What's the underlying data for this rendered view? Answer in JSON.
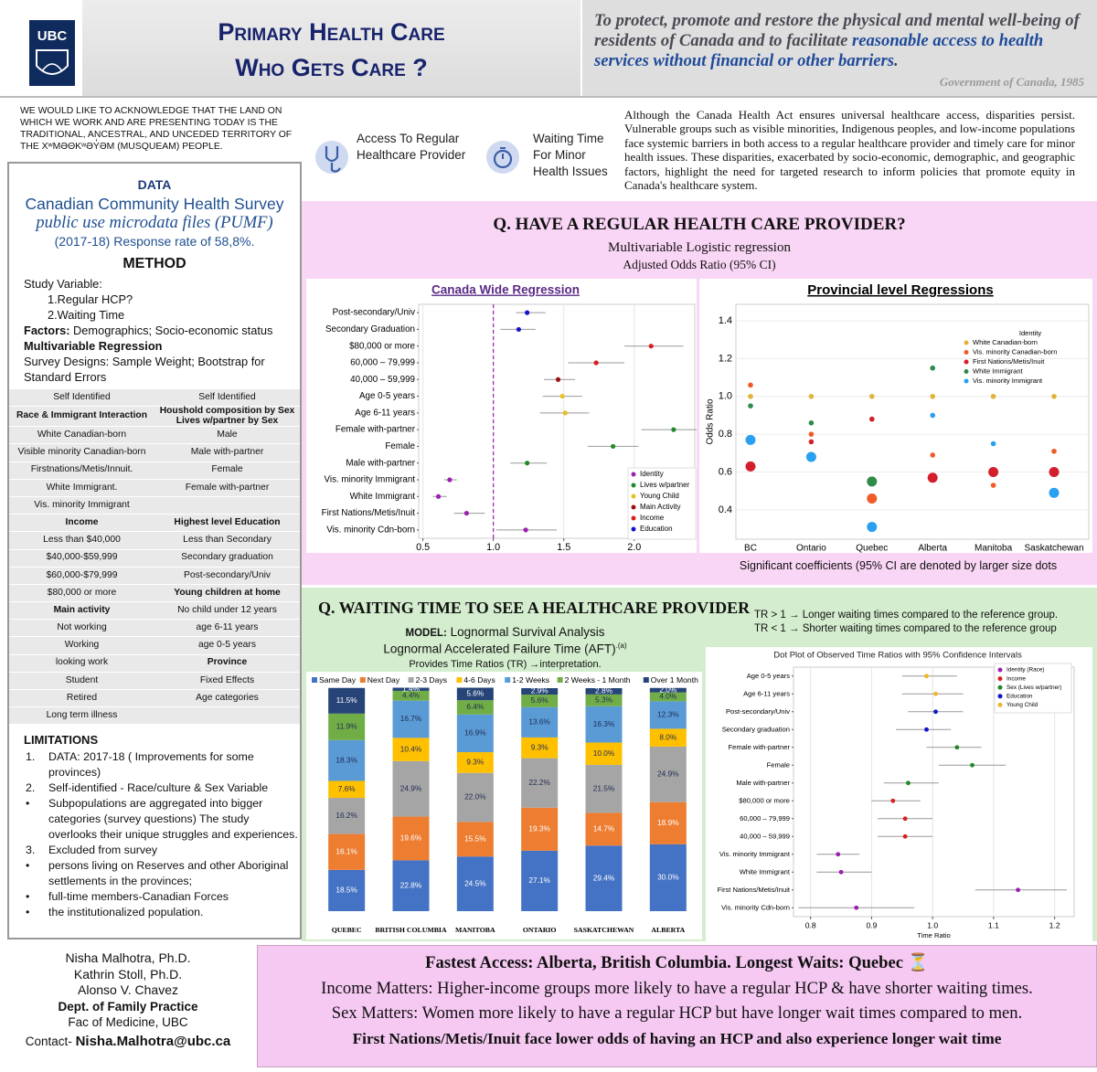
{
  "header": {
    "logo": "UBC",
    "title_line1": "Primary Health Care",
    "title_line2": "Who Gets Care ?",
    "quote_text": "To protect, promote and restore the physical and mental well-being of residents of Canada and to facilitate ",
    "quote_link": "reasonable access to health services without financial or other barriers",
    "quote_end": ".",
    "quote_source": "Government of Canada, 1985"
  },
  "acknowledgement": "WE WOULD LIKE TO ACKNOWLEDGE THAT THE LAND ON WHICH WE WORK AND ARE PRESENTING TODAY IS THE TRADITIONAL, ANCESTRAL, AND UNCEDED TERRITORY OF THE XʷMƏΘKʷƏY̓ƏM (MUSQUEAM) PEOPLE.",
  "data_box": {
    "heading": "DATA",
    "survey": "Canadian Community Health Survey",
    "pumf": "public use microdata files (PUMF)",
    "response": "(2017-18) Response rate of 58,8%."
  },
  "method": {
    "heading": "METHOD",
    "study_variable": "Study Variable:",
    "variables": [
      "1.Regular HCP?",
      "2.Waiting Time"
    ],
    "factors_label": "Factors:",
    "factors": " Demographics; Socio-economic status",
    "regression": "Multivariable Regression",
    "designs": "Survey Designs: Sample Weight; Bootstrap for Standard Errors"
  },
  "variables_table": {
    "rows": [
      [
        "Self Identified",
        "Self Identified"
      ],
      [
        "Race & Immigrant Interaction",
        "Houshold composition by Sex Lives w/partner by Sex"
      ],
      [
        "White Canadian-born",
        "Male"
      ],
      [
        "Visible minority Canadian-born",
        "Male with-partner"
      ],
      [
        "Firstnations/Metis/Innuit.",
        "Female"
      ],
      [
        "White Immigrant.",
        "Female with-partner"
      ],
      [
        "Vis. minority Immigrant",
        null
      ],
      [
        "Income",
        "Highest level Education"
      ],
      [
        "Less than $40,000",
        "Less than Secondary"
      ],
      [
        "$40,000-$59,999",
        "Secondary graduation"
      ],
      [
        "$60,000-$79,999",
        "Post-secondary/Univ"
      ],
      [
        "$80,000 or more",
        "Young children at home"
      ],
      [
        "Main activity",
        "No child under 12 years"
      ],
      [
        "Not working",
        "age 6-11 years"
      ],
      [
        "Working",
        "age 0-5 years"
      ],
      [
        "looking work",
        "Province"
      ],
      [
        "Student",
        "Fixed Effects"
      ],
      [
        "Retired",
        "Age  categories"
      ],
      [
        "Long term illness",
        null
      ]
    ]
  },
  "limitations": {
    "heading": "LIMITATIONS",
    "items": [
      {
        "marker": "1.",
        "text": "DATA:  2017-18 ( Improvements for some provinces)"
      },
      {
        "marker": "2.",
        "text": "Self-identified - Race/culture & Sex Variable"
      },
      {
        "marker": "•",
        "text": "Subpopulations are aggregated into bigger categories (survey questions) The study overlooks their unique struggles and experiences."
      },
      {
        "marker": "3.",
        "text": "Excluded from survey"
      },
      {
        "marker": "•",
        "text": "persons living on Reserves and other Aboriginal settlements in the provinces;"
      },
      {
        "marker": "•",
        "text": "full-time members-Canadian Forces"
      },
      {
        "marker": "•",
        "text": "the institutionalized population."
      }
    ]
  },
  "outcomes": [
    "Access To Regular Healthcare Provider",
    "Waiting Time For Minor Health Issues"
  ],
  "intro": "Although the Canada Health Act ensures universal healthcare access, disparities persist. Vulnerable groups such as visible minorities, Indigenous peoples, and low-income populations face systemic barriers in both access to a regular healthcare provider and timely care for minor health issues. These disparities, exacerbated by socio-economic, demographic, and geographic factors, highlight the need for targeted research to inform policies that promote equity in Canada's healthcare system.",
  "q1": {
    "title": "Q. HAVE A REGULAR HEALTH CARE PROVIDER?",
    "model": "Multivariable Logistic regression",
    "measure": "Adjusted Odds Ratio (95% CI)",
    "canada": {
      "type": "forest",
      "title": "Canada Wide Regression",
      "categories": [
        "Post-secondary/Univ",
        "Secondary Graduation",
        "$80,000 or more",
        "60,000 – 79,999",
        "40,000 – 59,999",
        "Age 0-5 years",
        "Age 6-11 years",
        "Female with-partner",
        "Female",
        "Male with-partner",
        "Vis. minority Immigrant",
        "White Immigrant",
        "First Nations/Metis/Inuit",
        "Vis. minority Cdn-born"
      ],
      "values": [
        1.24,
        1.18,
        2.12,
        1.73,
        1.46,
        1.49,
        1.51,
        2.28,
        1.85,
        1.24,
        0.69,
        0.61,
        0.81,
        1.23
      ],
      "ci_low": [
        1.16,
        1.05,
        1.93,
        1.53,
        1.36,
        1.35,
        1.33,
        2.05,
        1.67,
        1.12,
        0.65,
        0.57,
        0.72,
        1.02
      ],
      "ci_high": [
        1.37,
        1.3,
        2.35,
        1.93,
        1.58,
        1.63,
        1.68,
        2.48,
        2.03,
        1.38,
        0.74,
        0.67,
        0.94,
        1.45
      ],
      "colors": [
        "#1414c8",
        "#1414c8",
        "#d91e1e",
        "#d91e1e",
        "#9b1010",
        "#e8c020",
        "#e8c020",
        "#1f8a2a",
        "#1f8a2a",
        "#1f8a2a",
        "#9b1fb0",
        "#9b1fb0",
        "#9b1fb0",
        "#9b1fb0"
      ],
      "reference": 1,
      "xlim": [
        0.47,
        2.43
      ],
      "xticks": [
        0.5,
        {
          "value": 1,
          "label": "1.0"
        },
        1.5,
        {
          "value": 2,
          "label": "2.0"
        }
      ],
      "legend": [
        {
          "name": "Identity",
          "color": "#9b1fb0"
        },
        {
          "name": "Lives w/partner",
          "color": "#1f8a2a"
        },
        {
          "name": "Young Child",
          "color": "#e8c020"
        },
        {
          "name": "Main Activity",
          "color": "#9b1010"
        },
        {
          "name": "Income",
          "color": "#d91e1e"
        },
        {
          "name": "Education",
          "color": "#1414c8"
        }
      ]
    },
    "provincial": {
      "type": "dot",
      "title": "Provincial level Regressions",
      "ylabel": "Odds Ratio",
      "categories": [
        "BC",
        "Ontario",
        "Quebec",
        "Alberta",
        "Manitoba",
        "Saskatchewan"
      ],
      "legend_title": "Identity",
      "series": [
        {
          "name": "White Canadian-born",
          "color": "#e0b43a",
          "values": [
            1.0,
            1.0,
            1.0,
            1.0,
            1.0,
            1.0
          ],
          "significant": [
            false,
            false,
            false,
            false,
            false,
            false
          ]
        },
        {
          "name": "Vis. minority Canadian-born",
          "color": "#f05a28",
          "values": [
            1.06,
            0.8,
            0.46,
            0.69,
            0.53,
            0.71
          ],
          "significant": [
            false,
            false,
            true,
            false,
            false,
            false
          ]
        },
        {
          "name": "First Nations/Metis/Inuit",
          "color": "#d21f2b",
          "values": [
            0.63,
            0.76,
            0.88,
            0.57,
            0.6,
            0.6
          ],
          "significant": [
            true,
            false,
            false,
            true,
            true,
            true
          ]
        },
        {
          "name": "White Immigrant",
          "color": "#2e8b4a",
          "values": [
            0.95,
            0.86,
            0.55,
            1.15,
            null,
            null
          ],
          "significant": [
            false,
            false,
            true,
            false,
            false,
            false
          ]
        },
        {
          "name": "Vis. minority Immigrant",
          "color": "#2aa0f0",
          "values": [
            0.77,
            0.68,
            0.31,
            0.9,
            0.75,
            0.49
          ],
          "significant": [
            true,
            true,
            true,
            false,
            false,
            true
          ]
        }
      ],
      "ylim": [
        0.245,
        1.487
      ],
      "yticks": [
        0.4,
        0.6,
        0.8,
        {
          "value": 1,
          "label": "1.0"
        },
        1.2,
        1.4
      ]
    },
    "note": "Significant coefficients (95% CI are denoted by larger size dots"
  },
  "q2": {
    "title": "Q. WAITING TIME TO SEE A HEALTHCARE PROVIDER",
    "model_label": "MODEL:",
    "model": " Lognormal Survival Analysis",
    "aft": "Lognormal Accelerated Failure Time (AFT)",
    "aft_note": ".(a)",
    "provides": "Provides Time Ratios (TR) →interpretation.",
    "tr_longer": "TR > 1 → Longer waiting times compared to the reference group.",
    "tr_shorter": "TR < 1 → Shorter waiting times compared to the reference group",
    "bars": {
      "type": "bar",
      "stacked": true,
      "categories": [
        "QUEBEC",
        "BRITISH COLUMBIA",
        "MANITOBA",
        "ONTARIO",
        "SASKATCHEWAN",
        "ALBERTA"
      ],
      "series": [
        {
          "name": "Same Day",
          "color": "#4472c4",
          "values": [
            18.5,
            22.8,
            24.5,
            27.1,
            29.4,
            30.0
          ],
          "value_labels": [
            "18.5%",
            "22.8%",
            "24.5%",
            "27.1%",
            "29.4%",
            "30.0%"
          ]
        },
        {
          "name": "Next Day",
          "color": "#ed7d31",
          "values": [
            16.1,
            19.6,
            15.5,
            19.3,
            14.7,
            18.9
          ],
          "value_labels": [
            "16.1%",
            "19.6%",
            "15.5%",
            "19.3%",
            "14.7%",
            "18.9%"
          ]
        },
        {
          "name": "2-3 Days",
          "color": "#a5a5a5",
          "values": [
            16.2,
            24.9,
            22.0,
            22.2,
            21.5,
            24.9
          ],
          "value_labels": [
            "16.2%",
            "24.9%",
            "22.0%",
            "22.2%",
            "21.5%",
            "24.9%"
          ]
        },
        {
          "name": "4-6 Days",
          "color": "#ffc000",
          "values": [
            7.6,
            10.4,
            9.3,
            9.3,
            10.0,
            8.0
          ],
          "value_labels": [
            "7.6%",
            "10.4%",
            "9.3%",
            "9.3%",
            "10.0%",
            "8.0%"
          ]
        },
        {
          "name": "1-2 Weeks",
          "color": "#5b9bd5",
          "values": [
            18.3,
            16.7,
            16.9,
            13.6,
            16.3,
            12.3
          ],
          "value_labels": [
            "18.3%",
            "16.7%",
            "16.9%",
            "13.6%",
            "16.3%",
            "12.3%"
          ]
        },
        {
          "name": "2 Weeks - 1 Month",
          "color": "#70ad47",
          "values": [
            11.9,
            4.4,
            6.4,
            5.6,
            5.3,
            4.0
          ],
          "value_labels": [
            "11.9%",
            "4.4%",
            "6.4%",
            "5.6%",
            "5.3%",
            "4.0%"
          ]
        },
        {
          "name": "Over 1 Month",
          "color": "#264478",
          "values": [
            11.5,
            1.4,
            5.6,
            2.9,
            2.8,
            2.0
          ],
          "value_labels": [
            "11.5%",
            "1.4%",
            "5.6%",
            "2.9%",
            "2.8%",
            "2.0%"
          ]
        }
      ],
      "ylim": [
        0,
        100
      ]
    },
    "dots": {
      "type": "forest",
      "title": "Dot Plot of Observed Time Ratios with 95% Confidence Intervals",
      "xlabel": "Time Ratio",
      "categories": [
        "Age 0-5 years",
        "Age 6-11 years",
        "Post-secondary/Univ",
        "Secondary graduation",
        "Female with-partner",
        "Female",
        "Male with-partner",
        "$80,000 or more",
        "60,000 – 79,999",
        "40,000 – 59,999",
        "Vis. minority Immigrant",
        "White Immigrant",
        "First Nations/Metis/Inuit",
        "Vis. minority Cdn-born"
      ],
      "values": [
        0.99,
        1.005,
        1.005,
        0.99,
        1.04,
        1.065,
        0.96,
        0.935,
        0.955,
        0.955,
        0.845,
        0.85,
        1.14,
        0.875
      ],
      "ci_low": [
        0.95,
        0.95,
        0.96,
        0.94,
        0.99,
        1.01,
        0.92,
        0.9,
        0.91,
        0.91,
        0.81,
        0.81,
        1.07,
        0.78
      ],
      "ci_high": [
        1.04,
        1.05,
        1.05,
        1.03,
        1.08,
        1.12,
        1.01,
        0.98,
        1.0,
        1.0,
        0.88,
        0.9,
        1.22,
        0.97
      ],
      "colors": [
        "#f0b429",
        "#f0b429",
        "#1414c8",
        "#1414c8",
        "#1f8a2a",
        "#1f8a2a",
        "#1f8a2a",
        "#d91e1e",
        "#d91e1e",
        "#d91e1e",
        "#9b1fb0",
        "#9b1fb0",
        "#9b1fb0",
        "#9b1fb0"
      ],
      "xlim": [
        0.772,
        1.232
      ],
      "xticks": [
        0.8,
        0.9,
        {
          "value": 1,
          "label": "1.0"
        },
        1.1,
        1.2
      ],
      "legend": [
        {
          "name": "Identity (Race)",
          "color": "#9b1fb0"
        },
        {
          "name": "Income",
          "color": "#d91e1e"
        },
        {
          "name": "Sex (Lives w/partner)",
          "color": "#1f8a2a"
        },
        {
          "name": "Education",
          "color": "#1414c8"
        },
        {
          "name": "Young Child",
          "color": "#f0b429"
        }
      ]
    }
  },
  "authors": {
    "names": [
      "Nisha Malhotra, Ph.D.",
      "Kathrin Stoll, Ph.D.",
      "Alonso V. Chavez"
    ],
    "dept": "Dept. of Family Practice",
    "faculty": "Fac of Medicine, UBC",
    "contact_label": "Contact-",
    "email": "Nisha.Malhotra@ubc.ca"
  },
  "conclusions": [
    "Fastest Access: Alberta, British Columbia.   Longest Waits: Quebec ⏳",
    "Income Matters: Higher-income groups more likely to have a regular HCP & have shorter waiting times.",
    "Sex Matters: Women more likely to have a regular HCP but have longer wait times compared to men.",
    "First Nations/Metis/Inuit face lower odds of having an HCP and also experience longer wait time"
  ]
}
